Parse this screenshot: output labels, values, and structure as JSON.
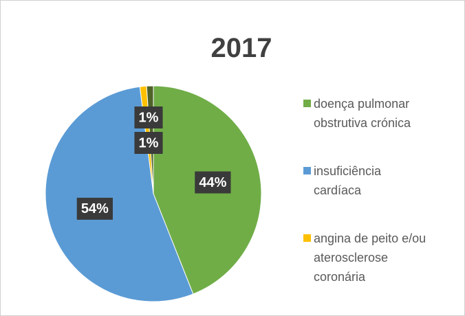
{
  "chart_data": {
    "type": "pie",
    "title": "2017",
    "categories": [
      "doença pulmonar obstrutiva crónica",
      "insuficiência cardíaca",
      "angina de peito e/ou aterosclerose coronária",
      null
    ],
    "values": [
      44,
      54,
      1,
      1
    ],
    "value_labels": [
      "44%",
      "54%",
      "1%",
      "1%"
    ],
    "colors": [
      "#70ad47",
      "#5b9bd5",
      "#ffc000",
      "#4f6228"
    ],
    "legend": "right"
  }
}
